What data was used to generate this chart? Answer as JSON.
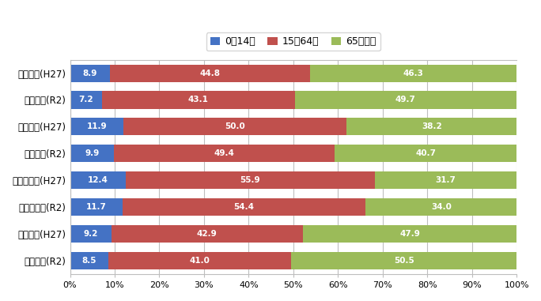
{
  "categories": [
    "芸北地域(H27)",
    "芸北地域(R2)",
    "大朝地域(H27)",
    "大朝地域(R2)",
    "千代田地域(H27)",
    "千代田地域(R2)",
    "豊平地域(H27)",
    "豊平地域(R2)"
  ],
  "young": [
    8.9,
    7.2,
    11.9,
    9.9,
    12.4,
    11.7,
    9.2,
    8.5
  ],
  "working": [
    44.8,
    43.1,
    50.0,
    49.4,
    55.9,
    54.4,
    42.9,
    41.0
  ],
  "elderly": [
    46.3,
    49.7,
    38.2,
    40.7,
    31.7,
    34.0,
    47.9,
    50.5
  ],
  "color_young": "#4472C4",
  "color_working": "#C0504D",
  "color_elderly": "#9BBB59",
  "legend_labels": [
    "0～14歳",
    "15～64歳",
    "65歳以上"
  ],
  "background_color": "#FFFFFF",
  "plot_bg_color": "#FFFFFF",
  "grid_color": "#BEBEBE",
  "bar_height": 0.65,
  "figsize": [
    6.84,
    3.81
  ],
  "dpi": 100
}
